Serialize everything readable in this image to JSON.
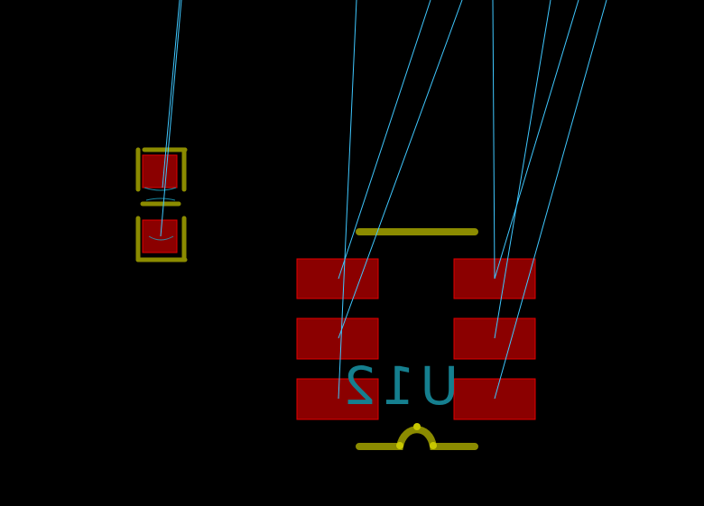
{
  "view": {
    "background_color": "#000000"
  },
  "colors": {
    "pad_fill": "#8b0000",
    "pad_stroke": "#e00000",
    "silkscreen": "#8b8b00",
    "silkscreen_point": "#c8c800",
    "ratsnest": "#3fc8ff",
    "refdes_text": "#157f8f",
    "hole_dots": "#3a3a8a"
  },
  "components": [
    {
      "id": "small-two-pad",
      "label": "",
      "pads": 2
    },
    {
      "id": "U12",
      "label": "U12",
      "pads": 6,
      "text_mirrored": true
    }
  ],
  "icons": {
    "ratsnest": "ratsnest-line-icon",
    "pad": "smd-pad-icon",
    "silkscreen": "silkscreen-outline-icon"
  }
}
